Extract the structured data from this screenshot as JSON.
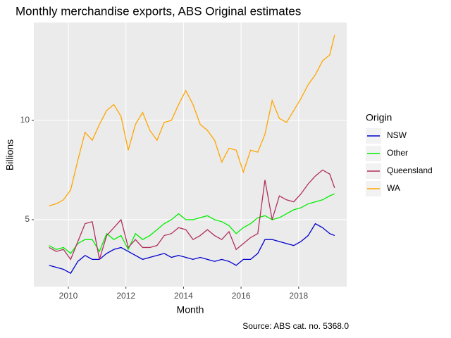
{
  "chart_data": {
    "type": "line",
    "title": "Monthly merchandise exports, ABS Original estimates",
    "xlabel": "Month",
    "ylabel": "Billions",
    "caption": "Source: ABS cat. no. 5368.0",
    "legend_title": "Origin",
    "legend": "right",
    "grid": true,
    "x": [
      2009.33,
      2009.58,
      2009.83,
      2010.08,
      2010.33,
      2010.58,
      2010.83,
      2011.08,
      2011.33,
      2011.58,
      2011.83,
      2012.08,
      2012.33,
      2012.58,
      2012.83,
      2013.08,
      2013.33,
      2013.58,
      2013.83,
      2014.08,
      2014.33,
      2014.58,
      2014.83,
      2015.08,
      2015.33,
      2015.58,
      2015.83,
      2016.08,
      2016.33,
      2016.58,
      2016.83,
      2017.08,
      2017.33,
      2017.58,
      2017.83,
      2018.08,
      2018.33,
      2018.58,
      2018.83,
      2019.08,
      2019.25
    ],
    "xlim": [
      2008.8,
      2019.67
    ],
    "xticks": [
      2010,
      2012,
      2014,
      2016,
      2018
    ],
    "ylim": [
      1.63,
      14.93
    ],
    "yticks": [
      5,
      10
    ],
    "series": [
      {
        "name": "NSW",
        "color": "#0000cd",
        "values": [
          2.7,
          2.6,
          2.5,
          2.3,
          2.9,
          3.2,
          3.0,
          3.0,
          3.3,
          3.5,
          3.6,
          3.4,
          3.2,
          3.0,
          3.1,
          3.2,
          3.3,
          3.1,
          3.2,
          3.1,
          3.0,
          3.1,
          3.0,
          2.9,
          3.0,
          2.9,
          2.7,
          3.0,
          3.0,
          3.3,
          4.0,
          4.0,
          3.9,
          3.8,
          3.7,
          3.9,
          4.2,
          4.8,
          4.6,
          4.3,
          4.2
        ]
      },
      {
        "name": "Other",
        "color": "#00ee00",
        "values": [
          3.7,
          3.5,
          3.6,
          3.3,
          3.8,
          4.0,
          4.0,
          3.4,
          4.3,
          4.0,
          4.2,
          3.5,
          4.3,
          4.0,
          4.2,
          4.5,
          4.8,
          5.0,
          5.3,
          5.0,
          5.0,
          5.1,
          5.2,
          5.0,
          4.9,
          4.7,
          4.3,
          4.6,
          4.8,
          5.1,
          5.2,
          5.0,
          5.1,
          5.3,
          5.5,
          5.6,
          5.8,
          5.9,
          6.0,
          6.2,
          6.3
        ]
      },
      {
        "name": "Queensland",
        "color": "#b03060",
        "values": [
          3.6,
          3.4,
          3.5,
          3.0,
          3.9,
          4.8,
          4.9,
          3.0,
          4.2,
          4.6,
          5.0,
          3.6,
          4.0,
          3.6,
          3.6,
          3.7,
          4.2,
          4.3,
          4.6,
          4.5,
          4.0,
          4.2,
          4.5,
          4.2,
          4.0,
          4.4,
          3.5,
          3.8,
          4.1,
          4.3,
          7.0,
          5.0,
          6.2,
          6.0,
          5.9,
          6.3,
          6.8,
          7.2,
          7.5,
          7.3,
          6.6
        ]
      },
      {
        "name": "WA",
        "color": "#ffa500",
        "values": [
          5.7,
          5.8,
          6.0,
          6.5,
          8.0,
          9.4,
          9.0,
          9.8,
          10.5,
          10.8,
          10.2,
          8.5,
          9.8,
          10.4,
          9.5,
          9.0,
          9.9,
          10.0,
          10.8,
          11.5,
          10.8,
          9.8,
          9.5,
          9.0,
          7.9,
          8.6,
          8.5,
          7.4,
          8.5,
          8.4,
          9.3,
          11.0,
          10.1,
          9.9,
          10.5,
          11.1,
          11.8,
          12.3,
          13.0,
          13.3,
          14.3
        ]
      }
    ]
  }
}
